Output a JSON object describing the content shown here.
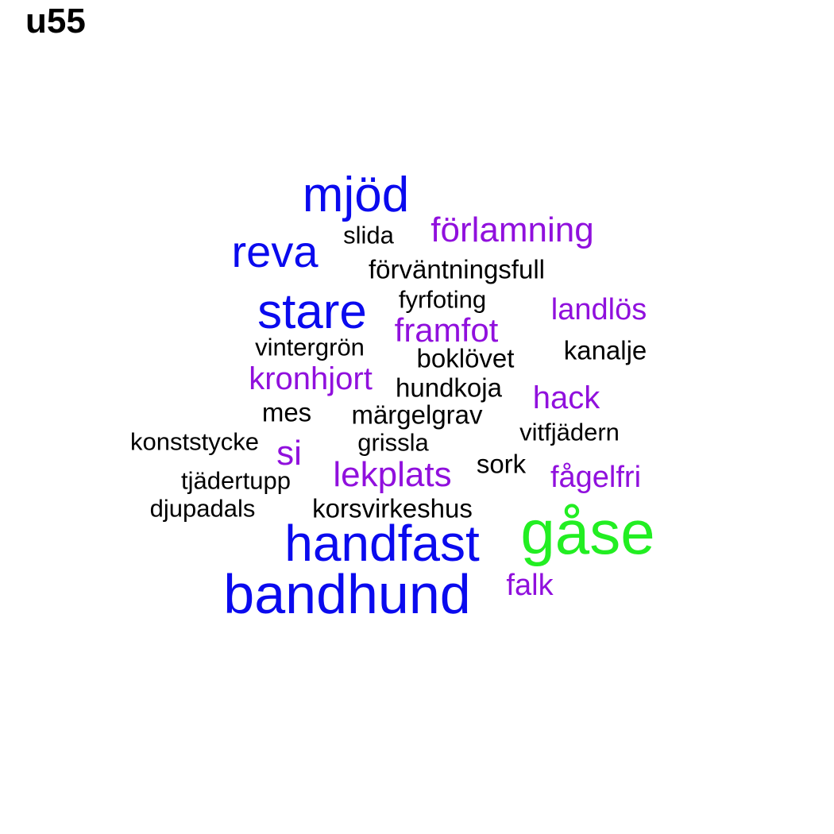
{
  "title": "u55",
  "colors": {
    "green": "#22ee22",
    "blue": "#0a0aee",
    "purple": "#9010dd",
    "black": "#000000"
  },
  "words": [
    {
      "text": "gåse",
      "color": "#22ee22"
    },
    {
      "text": "bandhund",
      "color": "#0a0aee"
    },
    {
      "text": "handfast",
      "color": "#0a0aee"
    },
    {
      "text": "stare",
      "color": "#0a0aee"
    },
    {
      "text": "mjöd",
      "color": "#0a0aee"
    },
    {
      "text": "reva",
      "color": "#0a0aee"
    },
    {
      "text": "förlamning",
      "color": "#9010dd"
    },
    {
      "text": "lekplats",
      "color": "#9010dd"
    },
    {
      "text": "framfot",
      "color": "#9010dd"
    },
    {
      "text": "kronhjort",
      "color": "#9010dd"
    },
    {
      "text": "hack",
      "color": "#9010dd"
    },
    {
      "text": "landlös",
      "color": "#9010dd"
    },
    {
      "text": "fågelfri",
      "color": "#9010dd"
    },
    {
      "text": "falk",
      "color": "#9010dd"
    },
    {
      "text": "si",
      "color": "#9010dd"
    },
    {
      "text": "förväntningsfull",
      "color": "#000000"
    },
    {
      "text": "boklövet",
      "color": "#000000"
    },
    {
      "text": "kanalje",
      "color": "#000000"
    },
    {
      "text": "hundkoja",
      "color": "#000000"
    },
    {
      "text": "märgelgrav",
      "color": "#000000"
    },
    {
      "text": "mes",
      "color": "#000000"
    },
    {
      "text": "korsvirkeshus",
      "color": "#000000"
    },
    {
      "text": "sork",
      "color": "#000000"
    },
    {
      "text": "fyrfoting",
      "color": "#000000"
    },
    {
      "text": "vintergrön",
      "color": "#000000"
    },
    {
      "text": "vitfjädern",
      "color": "#000000"
    },
    {
      "text": "konststycke",
      "color": "#000000"
    },
    {
      "text": "grissla",
      "color": "#000000"
    },
    {
      "text": "tjädertupp",
      "color": "#000000"
    },
    {
      "text": "djupadals",
      "color": "#000000"
    },
    {
      "text": "slida",
      "color": "#000000"
    }
  ]
}
